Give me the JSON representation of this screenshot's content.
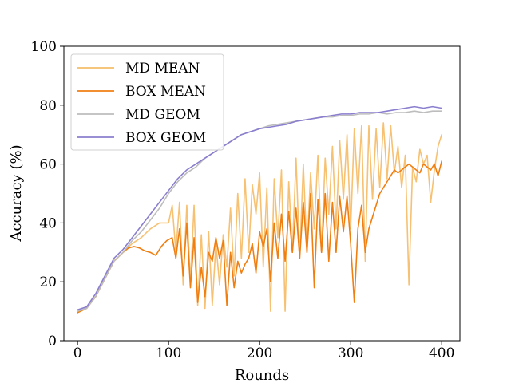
{
  "chart_data": {
    "type": "line",
    "title": "",
    "xlabel": "Rounds",
    "ylabel": "Accuracy (%)",
    "xlim": [
      -15,
      420
    ],
    "ylim": [
      0,
      100
    ],
    "xticks": [
      0,
      100,
      200,
      300,
      400
    ],
    "yticks": [
      0,
      20,
      40,
      60,
      80,
      100
    ],
    "xtick_labels": [
      "0",
      "100",
      "200",
      "300",
      "400"
    ],
    "ytick_labels": [
      "0",
      "20",
      "40",
      "60",
      "80",
      "100"
    ],
    "grid": false,
    "legend_position": "top-left",
    "series": [
      {
        "name": "MD MEAN",
        "color": "#f5be6a",
        "x": [
          0,
          10,
          20,
          30,
          40,
          50,
          60,
          70,
          80,
          90,
          100,
          104,
          108,
          112,
          116,
          120,
          124,
          128,
          132,
          136,
          140,
          144,
          148,
          152,
          156,
          160,
          164,
          168,
          172,
          176,
          180,
          184,
          188,
          192,
          196,
          200,
          204,
          208,
          212,
          216,
          220,
          224,
          228,
          232,
          236,
          240,
          244,
          248,
          252,
          256,
          260,
          264,
          268,
          272,
          276,
          280,
          284,
          288,
          292,
          296,
          300,
          304,
          308,
          312,
          316,
          320,
          324,
          328,
          332,
          336,
          340,
          344,
          348,
          352,
          356,
          360,
          364,
          368,
          372,
          376,
          380,
          384,
          388,
          392,
          396,
          400
        ],
        "y": [
          10,
          11,
          15,
          21,
          27,
          30,
          33,
          35,
          38,
          40,
          40,
          46,
          30,
          47,
          19,
          46,
          20,
          46,
          12,
          36,
          11,
          37,
          12,
          33,
          19,
          36,
          25,
          45,
          22,
          50,
          28,
          55,
          30,
          53,
          43,
          57,
          25,
          52,
          10,
          55,
          35,
          58,
          10,
          54,
          30,
          62,
          28,
          60,
          30,
          57,
          38,
          63,
          30,
          62,
          43,
          66,
          38,
          68,
          48,
          70,
          38,
          72,
          50,
          73,
          27,
          73,
          48,
          72,
          52,
          74,
          55,
          73,
          57,
          66,
          52,
          63,
          19,
          59,
          54,
          65,
          60,
          63,
          47,
          58,
          66,
          70
        ]
      },
      {
        "name": "BOX MEAN",
        "color": "#f07f12",
        "x": [
          0,
          10,
          20,
          30,
          40,
          50,
          56,
          62,
          68,
          74,
          80,
          86,
          92,
          98,
          104,
          108,
          112,
          116,
          120,
          124,
          128,
          132,
          136,
          140,
          144,
          148,
          152,
          156,
          160,
          164,
          168,
          172,
          176,
          180,
          184,
          188,
          192,
          196,
          200,
          204,
          208,
          212,
          216,
          220,
          224,
          228,
          232,
          236,
          240,
          244,
          248,
          252,
          256,
          260,
          264,
          268,
          272,
          276,
          280,
          284,
          288,
          292,
          296,
          300,
          304,
          308,
          312,
          316,
          320,
          324,
          328,
          332,
          336,
          340,
          344,
          348,
          352,
          356,
          360,
          364,
          368,
          372,
          376,
          380,
          384,
          388,
          392,
          396,
          400
        ],
        "y": [
          9.5,
          11,
          15,
          21,
          27,
          30,
          31.5,
          32,
          31.5,
          30.5,
          30,
          29,
          32,
          34,
          35,
          28,
          38,
          22,
          40,
          18,
          35,
          13,
          25,
          15,
          30,
          27,
          35,
          28,
          34,
          12,
          30,
          18,
          27,
          23,
          26,
          28,
          33,
          23,
          37,
          32,
          38,
          20,
          40,
          28,
          43,
          27,
          44,
          30,
          45,
          28,
          47,
          30,
          50,
          18,
          48,
          30,
          50,
          27,
          47,
          30,
          49,
          37,
          49,
          33,
          13,
          38,
          46,
          30,
          38,
          42,
          46,
          50,
          52,
          54,
          56,
          58,
          57,
          58,
          59,
          60,
          59,
          58,
          57,
          60,
          59,
          58,
          60,
          56,
          61
        ]
      },
      {
        "name": "MD GEOM",
        "color": "#bdbdbd",
        "x": [
          0,
          10,
          20,
          30,
          40,
          50,
          60,
          70,
          80,
          90,
          100,
          110,
          120,
          130,
          140,
          150,
          160,
          170,
          180,
          190,
          200,
          210,
          220,
          230,
          240,
          250,
          260,
          270,
          280,
          290,
          300,
          310,
          320,
          330,
          340,
          350,
          360,
          370,
          380,
          390,
          400
        ],
        "y": [
          10,
          11,
          15,
          21,
          27,
          30,
          34,
          37,
          41,
          45,
          50,
          54,
          57,
          59,
          62,
          64,
          66,
          68,
          70,
          71,
          72,
          73,
          73.5,
          74,
          74.5,
          75,
          75.5,
          76,
          76,
          76.5,
          76.5,
          77,
          77,
          77.5,
          77,
          77.5,
          77.5,
          78,
          77.5,
          78,
          78
        ]
      },
      {
        "name": "BOX GEOM",
        "color": "#8a7fcf",
        "x": [
          0,
          10,
          20,
          30,
          40,
          50,
          60,
          70,
          80,
          90,
          100,
          110,
          120,
          130,
          140,
          150,
          160,
          170,
          180,
          190,
          200,
          210,
          220,
          230,
          240,
          250,
          260,
          270,
          280,
          290,
          300,
          310,
          320,
          330,
          340,
          350,
          360,
          370,
          380,
          390,
          400
        ],
        "y": [
          10.5,
          11.5,
          16,
          22,
          28,
          31,
          35,
          39,
          43,
          47,
          51,
          55,
          58,
          60,
          62,
          64,
          66,
          68,
          70,
          71,
          72,
          72.5,
          73,
          73.5,
          74.5,
          75,
          75.5,
          76,
          76.5,
          77,
          77,
          77.5,
          77.5,
          77.5,
          78,
          78.5,
          79,
          79.5,
          79,
          79.5,
          79
        ]
      }
    ]
  }
}
